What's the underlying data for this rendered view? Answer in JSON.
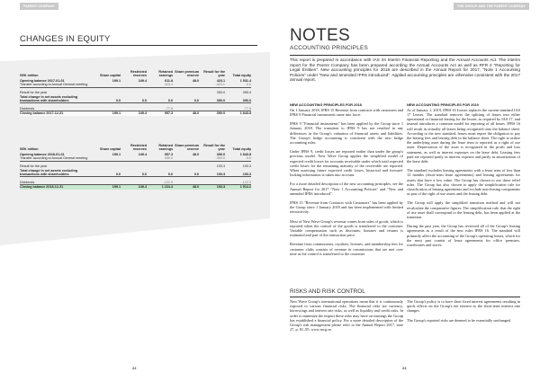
{
  "left_page": {
    "tag": "PARENT COMPANY",
    "title": "CHANGES IN EQUITY",
    "page_number": "22",
    "columns": [
      "SEK million",
      "Share capital",
      "Restricted reserves",
      "Retained earnings",
      "Share premium reserve",
      "Result for the year",
      "Total equity"
    ],
    "table_2017": [
      {
        "label": "Opening balance 2017-01-01",
        "values": [
          "199.1",
          "249.4",
          "611.8",
          "48.0",
          "423.1",
          "1 531.4"
        ]
      },
      {
        "label": "Transfer according to Annual General meeting",
        "values": [
          "",
          "",
          "423.1",
          "",
          "-423.1",
          "0.0"
        ]
      },
      {
        "label": "Result for the year",
        "values": [
          "",
          "",
          "",
          "",
          "390.0",
          "390.0"
        ]
      },
      {
        "label": "Total change in net assets excluding transactions with shareholders",
        "values": [
          "0.0",
          "0.0",
          "0.0",
          "0.0",
          "390.0",
          "390.0"
        ]
      },
      {
        "label": "Dividends",
        "values": [
          "",
          "",
          "-77.6",
          "",
          "",
          "-77.6"
        ]
      },
      {
        "label": "Closing balance 2017-12-31",
        "values": [
          "199.1",
          "249.4",
          "957.3",
          "48.0",
          "390.0",
          "1 843.8"
        ]
      }
    ],
    "table_2018": [
      {
        "label": "Opening balance 2018-01-01",
        "values": [
          "199.1",
          "249.4",
          "957.3",
          "48.0",
          "390.0",
          "1 843.8"
        ]
      },
      {
        "label": "Transfer according to Annual General meeting",
        "values": [
          "",
          "",
          "390.0",
          "",
          "-390.0",
          "0.0"
        ]
      },
      {
        "label": "Result for the year",
        "values": [
          "",
          "",
          "",
          "",
          "193.3",
          "193.3"
        ]
      },
      {
        "label": "Total change in net assets excluding transactions with shareholders",
        "values": [
          "0.0",
          "0.0",
          "0.0",
          "0.0",
          "193.3",
          "193.3"
        ]
      },
      {
        "label": "Dividends",
        "values": [
          "",
          "",
          "-122.9",
          "",
          "",
          "-122.9"
        ]
      },
      {
        "label": "Closing balance 2018-12-31",
        "values": [
          "199.1",
          "249.4",
          "1 224.4",
          "48.0",
          "193.3",
          "1 914.2"
        ]
      }
    ],
    "highlight_color": "#c8e9cf"
  },
  "right_page": {
    "tag": "THE GROUP AND THE PARENT COMPANY",
    "title": "NOTES",
    "subtitle": "ACCOUNTING PRINCIPLES",
    "page_number": "23",
    "intro": "This report is prepared in accordance with IAS 34 Interim Financial Reporting and the Annual Accounts Act. The interim report for the Parent Company has been prepared according the Annual Accounts Act as well as RFR 2 \"Reporting for Legal Entities\". New accounting principles for 2018 are described in the Annual Report for 2017, \"Note 1 Accounting Policies\" under \"New and amended IFRS introduced\". Applied accounting principles are otherwise consistent with the 2017 annual report.",
    "col_left": {
      "heading": "NEW ACCOUNTING PRINCIPLES FOR 2018",
      "paragraphs": [
        "On 1 January 2018, IFRS 15 Revenue from contracts with customers and IFRS 9 Financial instruments came into force.",
        "IFRS 9 \"Financial instruments\" has been applied by the Group since 1 January 2018. The transition to IFRS 9 has not resulted in any differences in the Group's valuation of financial assets and liabilities. The Group's hedge accounting is consistent with the new hedge accounting rules.",
        "Under IFRS 9, credit losses are reported earlier than under the group's previous model. New Wave Group applies the simplified model of expected credit losses for accounts receivable under which total expected credit losses for the remaining maturity of the receivable are reported. When assessing future expected credit losses, historical and forward-looking information is taken into account.",
        "For a more detailed description of the new accounting principles, see the Annual Report for 2017 \"Note 1 Accounting Policies\" and \"New and amended IFRS introduced\".",
        "IFRS 15 \"Revenue from Contracts with Customers\" has been applied by the Group since 1 January 2018 and has been implemented with limited retroactivity.",
        "Most of New Wave Group's revenue comes from sales of goods, which is reported when the control of the goods is transferred to the customer. Variable compensation such as discounts, bonuses and returns is estimated and part of the transaction price.",
        "Revenue from commissions, royalties, licenses, and membership fees for customer clubs consists of revenue in commissions that are met over time as the control is transferred to the customer."
      ]
    },
    "col_right": {
      "heading": "NEW ACCOUNTING PRINCIPLES FOR 2019",
      "paragraphs": [
        "As of January 1, 2019, IFRS 16 Leases replaces the current standard IAS 17 Leases. The standard removes the splitting of leases into either operational or financial leasing for the lessee, as required by IAS 17, and instead introduces a common model for reporting of all leases. IFRS 16 will result in virtually all leases being recognized onto the balance sheet. According to the new standard, leases must report the obligation to pay the leasing fees and leasing debt in the balance sheet. The right to utilize the underlying asset during the lease term is reported as a right of use asset. Depreciation of the asset is recognized in the profit and loss statement, as well as interest expenses on the lease debt. Leasing fees paid are reported partly as interest expense and partly as amortization of the lease debt.",
        "The standard excludes leasing agreements with a lease term of less than 12 months (short-term lease agreements) and leasing agreements for assets that have a low value. The Group has chosen to use these relief rules. The Group has also chosen to apply the simplification rule for classification of leasing agreements and exclude non-leasing components as part of the right of use assets and the leasing debt.",
        "The Group will apply the simplified transition method and will not recalculate the comparative figures. The simplification rule, that the right of use asset shall correspond to the leasing debt, has been applied at the transition.",
        "During the past year, the Group has reviewed all of the Group's leasing agreements as a result of the new rules IFRS 16. The standard will primarily affect the accounting of the Group's operating leases, which for the most part consist of lease agreements for office premises, warehouses and stores."
      ]
    },
    "risks": {
      "title": "RISKS AND RISK CONTROL",
      "left": "New Wave Group's international operations mean that it is continuously exposed to various financial risks. The financial risks are currency, borrowings and interest rate risks, as well as liquidity and credit risks. In order to minimize the impact these risks may have on earnings the Group has established a financial policy. For a more detailed description of the Group's risk management please refer to the Annual Report 2017, note 27, p. 81–85. www.nwg.se.",
      "right": [
        "The Group's policy is to have short fixed interest agreements resulting in quick effects on the Group's net interest as the short-term interest rate changes.",
        "The Group's reported risks are deemed to be essentially unchanged."
      ]
    }
  }
}
